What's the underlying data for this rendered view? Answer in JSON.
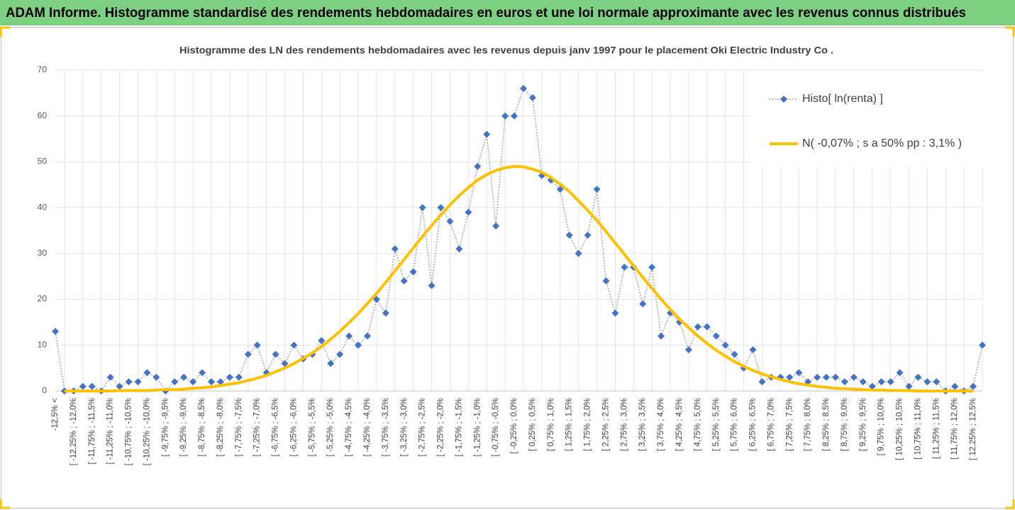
{
  "chart_data": {
    "type": "line",
    "title": "ADAM Informe. Histogramme standardisé des rendements hebdomadaires en euros et une loi normale approximante avec les revenus connus distribués",
    "subtitle": "Histogramme des LN des rendements hebdomadaires avec les revenus depuis janv 1997 pour le placement Oki Electric Industry Co .",
    "categories": [
      "-12,5% <",
      null,
      "[ -12,25% ; -12,0%",
      null,
      "[ -11,75% ; -11,5%",
      null,
      "[ -11,25% ; -11,0%",
      null,
      "[ -10,75% ; -10,5%",
      null,
      "[ -10,25% ; -10,0%",
      null,
      "[ -9,75% ; -9,5%",
      null,
      "[ -9,25% ; -9,0%",
      null,
      "[ -8,75% ; -8,5%",
      null,
      "[ -8,25% ; -8,0%",
      null,
      "[ -7,75% ; -7,5%",
      null,
      "[ -7,25% ; -7,0%",
      null,
      "[ -6,75% ; -6,5%",
      null,
      "[ -6,25% ; -6,0%",
      null,
      "[ -5,75% ; -5,5%",
      null,
      "[ -5,25% ; -5,0%",
      null,
      "[ -4,75% ; -4,5%",
      null,
      "[ -4,25% ; -4,0%",
      null,
      "[ -3,75% ; -3,5%",
      null,
      "[ -3,25% ; -3,0%",
      null,
      "[ -2,75% ; -2,5%",
      null,
      "[ -2,25% ; -2,0%",
      null,
      "[ -1,75% ; -1,5%",
      null,
      "[ -1,25% ; -1,0%",
      null,
      "[ -0,75% ; -0,5%",
      null,
      "[ -0,25% ; 0,0%",
      null,
      "[ 0,25% ; 0,5%",
      null,
      "[ 0,75% ; 1,0%",
      null,
      "[ 1,25% ; 1,5%",
      null,
      "[ 1,75% ; 2,0%",
      null,
      "[ 2,25% ; 2,5%",
      null,
      "[ 2,75% ; 3,0%",
      null,
      "[ 3,25% ; 3,5%",
      null,
      "[ 3,75% ; 4,0%",
      null,
      "[ 4,25% ; 4,5%",
      null,
      "[ 4,75% ; 5,0%",
      null,
      "[ 5,25% ; 5,5%",
      null,
      "[ 5,75% ; 6,0%",
      null,
      "[ 6,25% ; 6,5%",
      null,
      "[ 6,75% ; 7,0%",
      null,
      "[ 7,25% ; 7,5%",
      null,
      "[ 7,75% ; 8,0%",
      null,
      "[ 8,25% ; 8,5%",
      null,
      "[ 8,75% ; 9,0%",
      null,
      "[ 9,25% ; 9,5%",
      null,
      "[ 9,75% ; 10,0%",
      null,
      "[ 10,25% ; 10,5%",
      null,
      "[ 10,75% ; 11,0%",
      null,
      "[ 11,25% ; 11,5%",
      null,
      "[ 11,75% ; 12,0%",
      null,
      "[ 12,25% ; 12,5%",
      null
    ],
    "series": [
      {
        "name": "Histo[ ln(renta) ]",
        "color": "#4472c4",
        "line_color": "#a6a6a6",
        "values": [
          13,
          0,
          0,
          1,
          1,
          0,
          3,
          1,
          2,
          2,
          4,
          3,
          0,
          2,
          3,
          2,
          4,
          2,
          2,
          3,
          3,
          8,
          10,
          4,
          8,
          6,
          10,
          7,
          8,
          11,
          6,
          8,
          12,
          10,
          12,
          20,
          17,
          31,
          24,
          26,
          40,
          23,
          40,
          37,
          31,
          39,
          49,
          56,
          36,
          60,
          60,
          66,
          64,
          47,
          46,
          44,
          34,
          30,
          34,
          44,
          24,
          17,
          27,
          27,
          19,
          27,
          12,
          17,
          15,
          9,
          14,
          14,
          12,
          10,
          8,
          5,
          9,
          2,
          3,
          3,
          3,
          4,
          2,
          3,
          3,
          3,
          2,
          3,
          2,
          1,
          2,
          2,
          4,
          1,
          3,
          2,
          2,
          0,
          1,
          0,
          1,
          10
        ]
      },
      {
        "name": "N( -0,07% ; s a 50% pp : 3,1% )",
        "color": "#ffc000",
        "values": [
          null,
          0,
          0,
          0,
          0,
          0,
          0,
          0.1,
          0.1,
          0.1,
          0.1,
          0.2,
          0.3,
          0.3,
          0.4,
          0.6,
          0.7,
          0.9,
          1.2,
          1.5,
          1.8,
          2.3,
          2.8,
          3.4,
          4.2,
          5.0,
          6.0,
          7.1,
          8.3,
          9.7,
          11.3,
          13.0,
          14.9,
          16.9,
          19.1,
          21.3,
          23.7,
          26.2,
          28.7,
          31.2,
          33.7,
          36.1,
          38.4,
          40.6,
          42.6,
          44.4,
          46.0,
          47.2,
          48.1,
          48.7,
          49.0,
          48.9,
          48.4,
          47.7,
          46.6,
          45.1,
          43.5,
          41.5,
          39.4,
          37.2,
          34.8,
          32.3,
          29.8,
          27.3,
          24.8,
          22.4,
          20.0,
          17.8,
          15.7,
          13.8,
          12.0,
          10.4,
          8.9,
          7.6,
          6.4,
          5.4,
          4.5,
          3.7,
          3.1,
          2.5,
          2.0,
          1.6,
          1.3,
          1.0,
          0.8,
          0.6,
          0.5,
          0.4,
          0.3,
          0.2,
          0.2,
          0.1,
          0.1,
          0.1,
          0,
          0,
          0,
          0,
          0,
          0,
          0,
          null
        ]
      }
    ],
    "ylim": [
      0,
      70
    ],
    "yticks": [
      0,
      10,
      20,
      30,
      40,
      50,
      60,
      70
    ],
    "grid": true,
    "legend": "top-right"
  }
}
